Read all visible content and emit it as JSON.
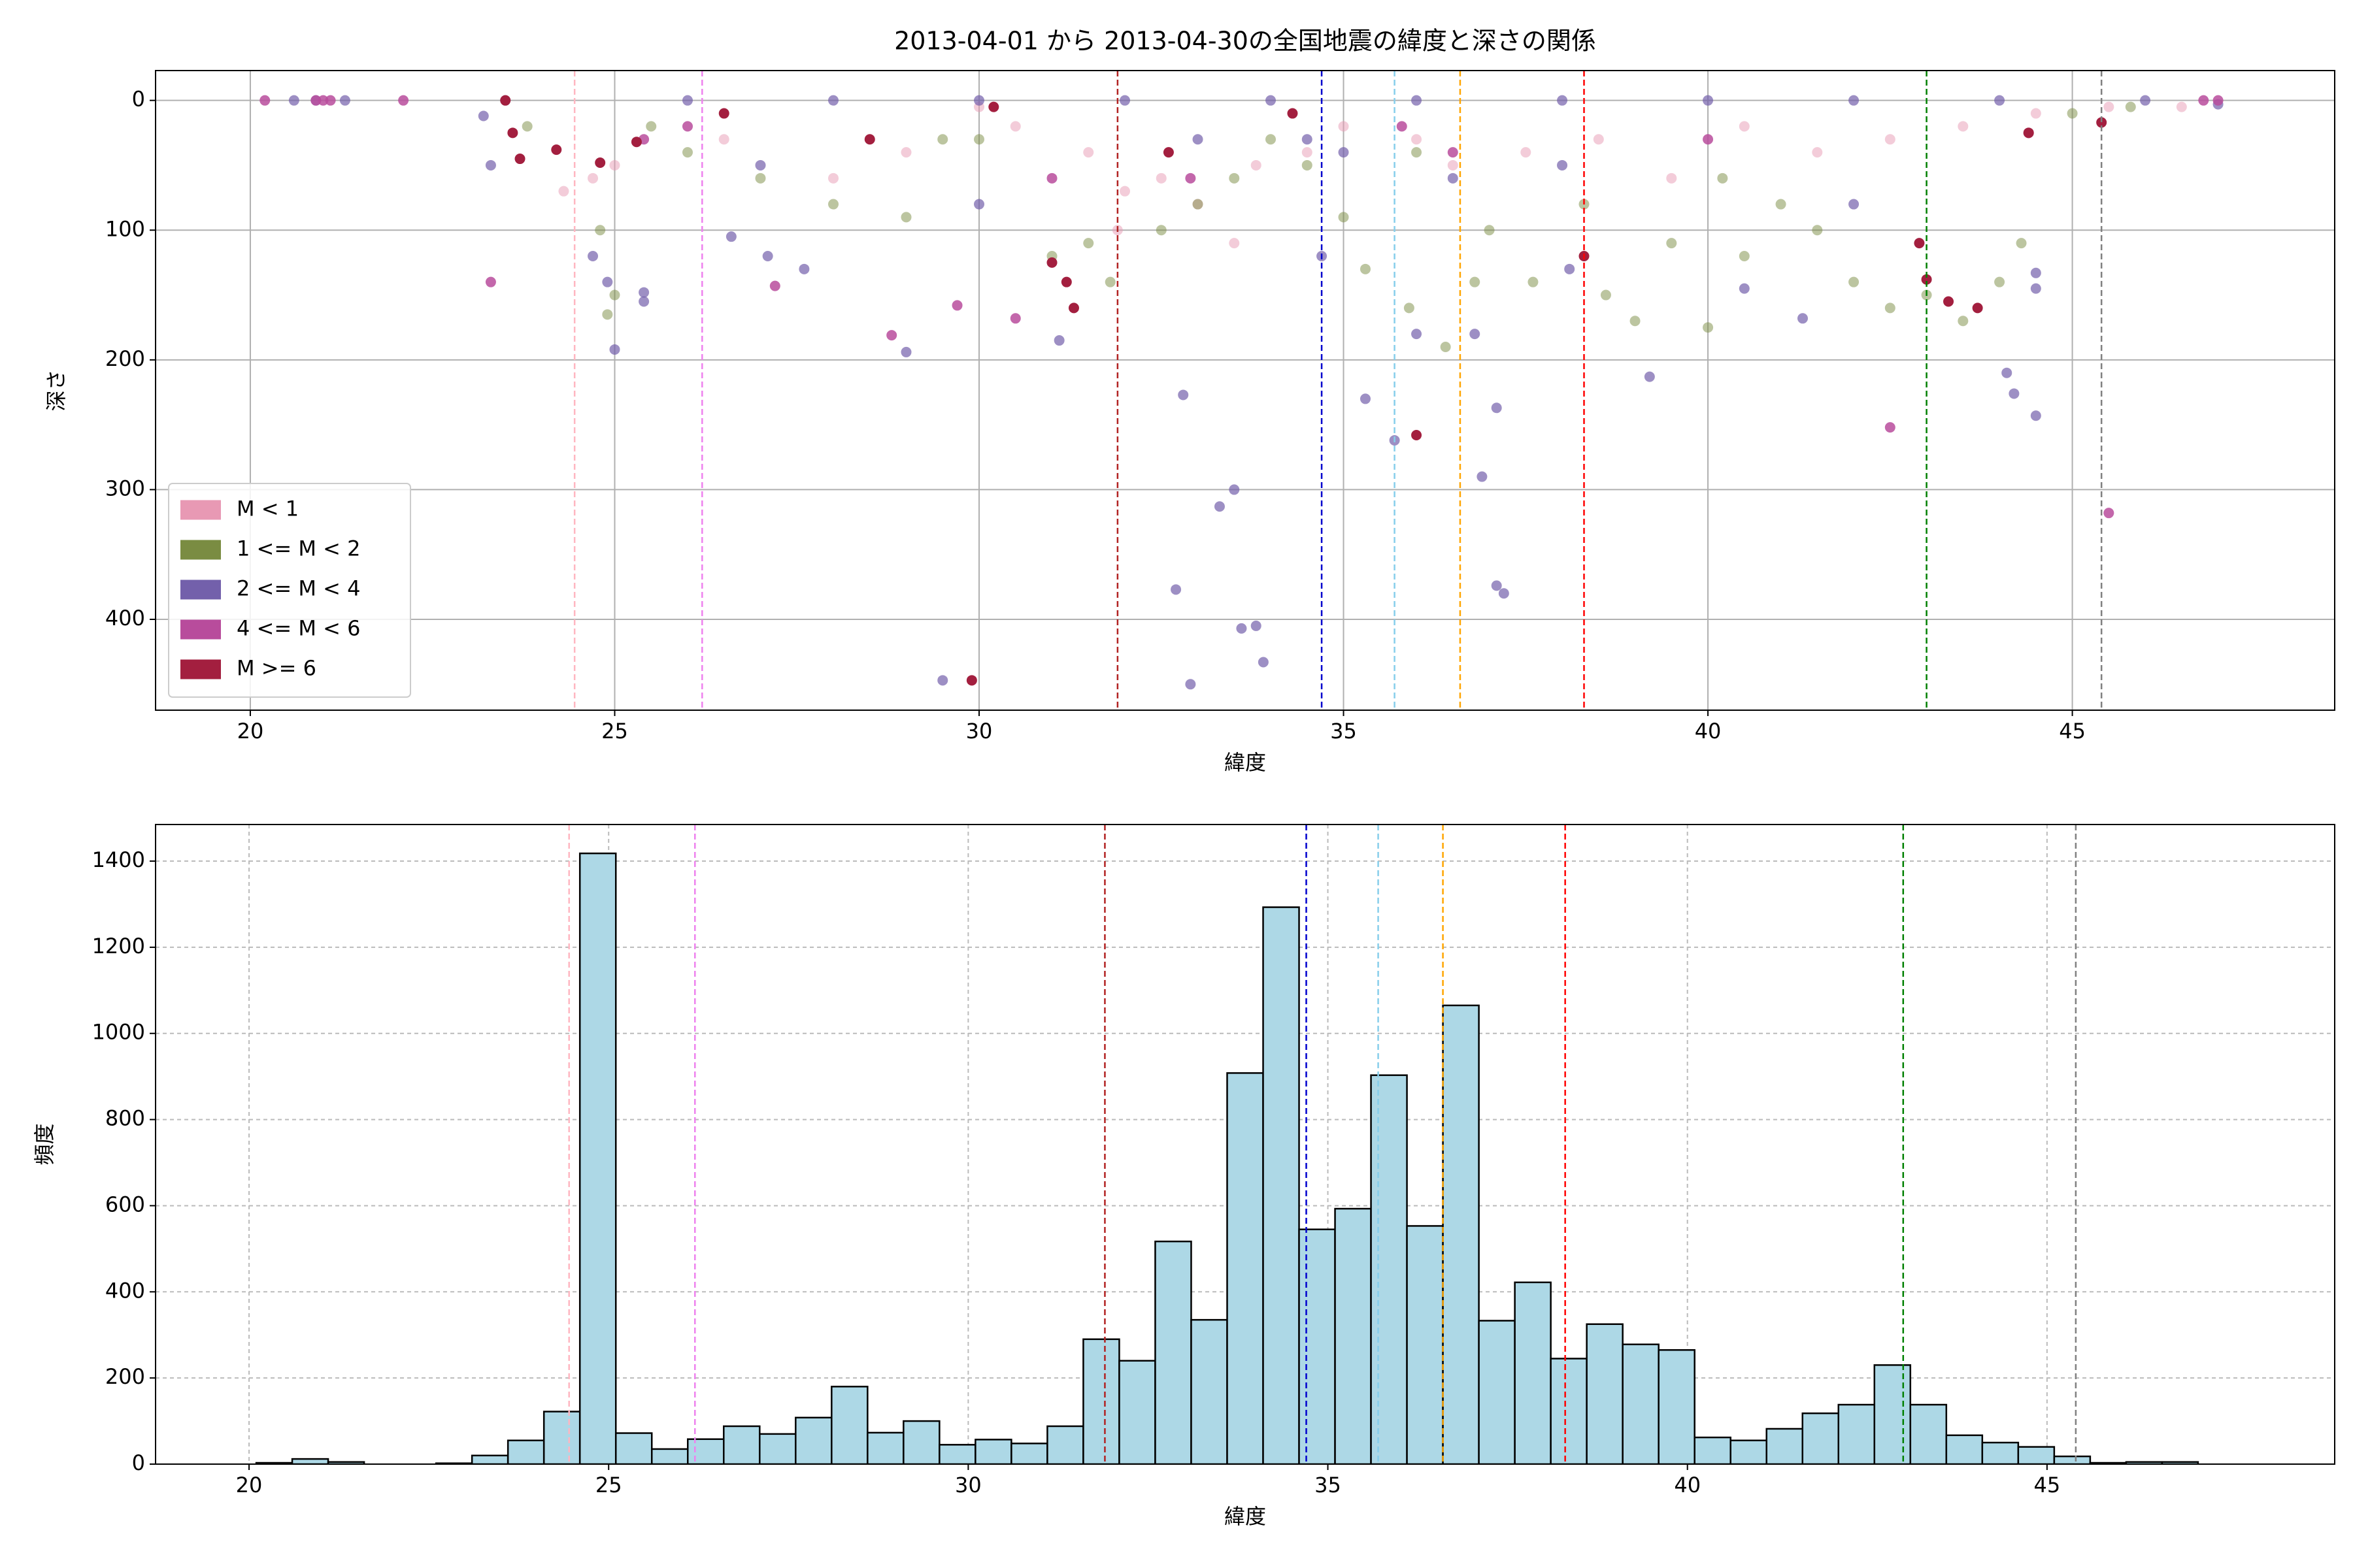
{
  "chart_data": [
    {
      "type": "scatter",
      "title": "2013-04-01 から 2013-04-30の全国地震の緯度と深さの関係",
      "xlabel": "緯度",
      "ylabel": "深さ",
      "xlim": [
        18.7,
        48.6
      ],
      "xticks": [
        20,
        25,
        30,
        35,
        40,
        45
      ],
      "ylim": [
        470,
        -23
      ],
      "yticks": [
        0,
        100,
        200,
        300,
        400
      ],
      "grid": true,
      "grid_style": "solid",
      "legend": "lower left",
      "series": [
        {
          "name": "M < 1",
          "color": "#e899b4",
          "alpha": 0.5,
          "x": [
            24.3,
            24.7,
            25.0,
            26.5,
            28.0,
            29.0,
            30.5,
            31.5,
            32.0,
            32.5,
            33.0,
            33.8,
            34.5,
            35.0,
            36.0,
            36.5,
            37.5,
            38.5,
            39.5,
            40.5,
            41.5,
            42.5,
            43.5,
            44.5,
            45.5,
            46.5,
            31.9,
            33.5,
            30.0
          ],
          "values": [
            70,
            60,
            50,
            30,
            60,
            40,
            20,
            40,
            70,
            60,
            80,
            50,
            40,
            20,
            30,
            50,
            40,
            30,
            60,
            20,
            40,
            30,
            20,
            10,
            5,
            5,
            100,
            110,
            5
          ]
        },
        {
          "name": "1 <= M < 2",
          "color": "#7a8c42",
          "alpha": 0.5,
          "x": [
            24.9,
            25.0,
            24.8,
            26.0,
            27.0,
            28.0,
            29.0,
            30.0,
            31.0,
            31.5,
            31.8,
            32.5,
            33.0,
            33.5,
            34.0,
            35.0,
            35.3,
            35.9,
            36.4,
            36.8,
            37.0,
            37.6,
            38.3,
            38.6,
            39.0,
            39.5,
            40.0,
            40.5,
            41.0,
            41.5,
            42.0,
            42.5,
            43.0,
            43.5,
            44.0,
            44.3,
            45.0,
            23.8,
            29.5,
            36.0,
            40.2,
            34.5,
            25.5,
            45.8
          ],
          "values": [
            165,
            150,
            100,
            40,
            60,
            80,
            90,
            30,
            120,
            110,
            140,
            100,
            80,
            60,
            30,
            90,
            130,
            160,
            190,
            140,
            100,
            140,
            80,
            150,
            170,
            110,
            175,
            120,
            80,
            100,
            140,
            160,
            150,
            170,
            140,
            110,
            10,
            20,
            30,
            40,
            60,
            50,
            20,
            5
          ]
        },
        {
          "name": "2 <= M < 4",
          "color": "#7360ab",
          "alpha": 0.7,
          "x": [
            20.6,
            20.9,
            21.3,
            23.2,
            23.3,
            23.5,
            24.7,
            24.9,
            25.0,
            25.4,
            25.4,
            26.0,
            26.6,
            27.0,
            27.1,
            27.6,
            28.0,
            29.0,
            29.5,
            30.0,
            30.0,
            31.1,
            32.0,
            32.7,
            32.8,
            32.9,
            33.0,
            33.3,
            33.5,
            33.6,
            33.8,
            33.9,
            34.0,
            34.5,
            34.7,
            35.0,
            35.3,
            35.7,
            36.0,
            36.0,
            36.5,
            36.8,
            36.9,
            37.1,
            37.1,
            37.2,
            38.0,
            38.0,
            38.1,
            39.2,
            40.0,
            40.5,
            41.3,
            42.0,
            42.0,
            44.0,
            44.1,
            44.2,
            44.5,
            44.5,
            44.5,
            46.0,
            47.0
          ],
          "values": [
            0,
            0,
            0,
            12,
            50,
            0,
            120,
            140,
            192,
            148,
            155,
            0,
            105,
            50,
            120,
            130,
            0,
            194,
            447,
            80,
            0,
            185,
            0,
            377,
            227,
            450,
            30,
            313,
            300,
            407,
            405,
            433,
            0,
            30,
            120,
            40,
            230,
            262,
            180,
            0,
            60,
            180,
            290,
            237,
            374,
            380,
            50,
            0,
            130,
            213,
            0,
            145,
            168,
            80,
            0,
            0,
            210,
            226,
            243,
            145,
            133,
            0,
            3
          ]
        },
        {
          "name": "4 <= M < 6",
          "color": "#b84c9c",
          "alpha": 0.85,
          "x": [
            20.2,
            20.9,
            21.0,
            21.1,
            22.1,
            23.3,
            25.4,
            26.0,
            27.2,
            28.8,
            29.7,
            30.5,
            31.0,
            32.9,
            35.8,
            36.5,
            40.0,
            42.5,
            44.4,
            45.5,
            46.8,
            47.0
          ],
          "values": [
            0,
            0,
            0,
            0,
            0,
            140,
            30,
            20,
            143,
            181,
            158,
            168,
            60,
            60,
            20,
            40,
            30,
            252,
            25,
            318,
            0,
            0
          ]
        },
        {
          "name": "M >= 6",
          "color": "#a31f3f",
          "alpha": 1,
          "x": [
            23.5,
            23.6,
            23.7,
            24.2,
            24.8,
            25.3,
            26.5,
            28.5,
            29.9,
            30.2,
            31.0,
            31.2,
            31.3,
            32.6,
            34.3,
            36.0,
            38.3,
            42.9,
            43.0,
            43.3,
            43.7,
            44.4,
            45.4
          ],
          "values": [
            0,
            25,
            45,
            38,
            48,
            32,
            10,
            30,
            447,
            5,
            125,
            140,
            160,
            40,
            10,
            258,
            120,
            110,
            138,
            155,
            160,
            25,
            17
          ]
        }
      ],
      "vlines": [
        {
          "x": 24.45,
          "color": "#ffb6c1"
        },
        {
          "x": 26.2,
          "color": "#ee82ee"
        },
        {
          "x": 31.9,
          "color": "#b22222"
        },
        {
          "x": 34.7,
          "color": "#0000cd"
        },
        {
          "x": 35.7,
          "color": "#87ceeb"
        },
        {
          "x": 36.6,
          "color": "#ffa500"
        },
        {
          "x": 38.3,
          "color": "#ff0000"
        },
        {
          "x": 43.0,
          "color": "#008000"
        },
        {
          "x": 45.4,
          "color": "#808080"
        }
      ]
    },
    {
      "type": "histogram",
      "xlabel": "緯度",
      "ylabel": "頻度",
      "xlim": [
        18.7,
        49.0
      ],
      "xticks": [
        20,
        25,
        30,
        35,
        40,
        45
      ],
      "ylim": [
        0,
        1485
      ],
      "yticks": [
        0,
        200,
        400,
        600,
        800,
        1000,
        1200,
        1400
      ],
      "grid": true,
      "grid_style": "dashed",
      "color": "#add8e6",
      "edgecolor": "#000000",
      "bins": [
        20.1,
        20.6,
        21.1,
        21.6,
        22.1,
        22.6,
        23.1,
        23.6,
        24.1,
        24.6,
        25.1,
        25.6,
        26.1,
        26.6,
        27.1,
        27.6,
        28.1,
        28.6,
        29.1,
        29.6,
        30.1,
        30.6,
        31.1,
        31.6,
        32.1,
        32.6,
        33.1,
        33.6,
        34.1,
        34.6,
        35.1,
        35.6,
        36.1,
        36.6,
        37.1,
        37.6,
        38.1,
        38.6,
        39.1,
        39.6,
        40.1,
        40.6,
        41.1,
        41.6,
        42.1,
        42.6,
        43.1,
        43.6,
        44.1,
        44.6,
        45.1,
        45.6,
        46.1,
        46.6,
        47.1
      ],
      "values": [
        3,
        12,
        5,
        0,
        0,
        2,
        20,
        55,
        122,
        1418,
        72,
        35,
        58,
        88,
        70,
        108,
        180,
        73,
        100,
        45,
        57,
        48,
        88,
        290,
        240,
        517,
        335,
        908,
        1293,
        545,
        593,
        903,
        553,
        1065,
        333,
        422,
        245,
        325,
        278,
        265,
        62,
        55,
        82,
        118,
        138,
        230,
        138,
        67,
        50,
        40,
        18,
        3,
        5,
        5
      ],
      "vlines": [
        {
          "x": 24.45,
          "color": "#ffb6c1"
        },
        {
          "x": 26.2,
          "color": "#ee82ee"
        },
        {
          "x": 31.9,
          "color": "#b22222"
        },
        {
          "x": 34.7,
          "color": "#0000cd"
        },
        {
          "x": 35.7,
          "color": "#87ceeb"
        },
        {
          "x": 36.6,
          "color": "#ffa500"
        },
        {
          "x": 38.3,
          "color": "#ff0000"
        },
        {
          "x": 43.0,
          "color": "#008000"
        },
        {
          "x": 45.4,
          "color": "#808080"
        }
      ]
    }
  ]
}
